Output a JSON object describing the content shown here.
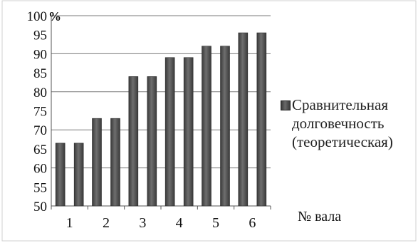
{
  "chart_data": {
    "type": "bar",
    "title": "",
    "xlabel": "№ вала",
    "ylabel": "",
    "y_unit": "%",
    "ylim": [
      50,
      100
    ],
    "y_ticks": [
      50,
      55,
      60,
      65,
      70,
      75,
      80,
      85,
      90,
      95,
      100
    ],
    "x_ticks": [
      "1",
      "2",
      "3",
      "4",
      "5",
      "6"
    ],
    "legend_position": "right",
    "grid": "horizontal",
    "bar_color": "#4a4a4a",
    "series": [
      {
        "name": "Сравнительная долговечность (теоретическая)",
        "values": [
          66.5,
          66.5,
          73,
          73,
          84,
          84,
          89,
          89,
          92,
          92,
          95.5,
          95.5
        ]
      }
    ]
  }
}
